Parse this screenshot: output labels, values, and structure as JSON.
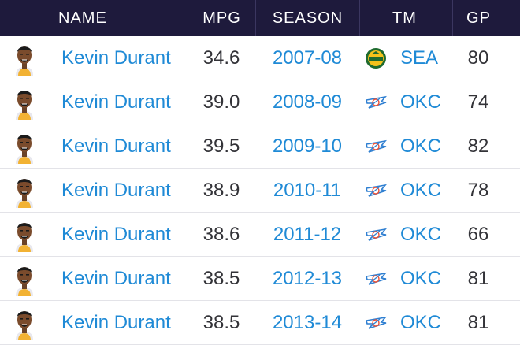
{
  "columns": {
    "name": "NAME",
    "mpg": "MPG",
    "season": "SEASON",
    "tm": "TM",
    "gp": "GP"
  },
  "colors": {
    "header_bg": "#1e1a3c",
    "link": "#1f8ad6",
    "text": "#333338"
  },
  "rows": [
    {
      "name": "Kevin Durant",
      "mpg": "34.6",
      "season": "2007-08",
      "team_logo": "supersonics-logo-icon",
      "tm": "SEA",
      "gp": "80"
    },
    {
      "name": "Kevin Durant",
      "mpg": "39.0",
      "season": "2008-09",
      "team_logo": "thunder-logo-icon",
      "tm": "OKC",
      "gp": "74"
    },
    {
      "name": "Kevin Durant",
      "mpg": "39.5",
      "season": "2009-10",
      "team_logo": "thunder-logo-icon",
      "tm": "OKC",
      "gp": "82"
    },
    {
      "name": "Kevin Durant",
      "mpg": "38.9",
      "season": "2010-11",
      "team_logo": "thunder-logo-icon",
      "tm": "OKC",
      "gp": "78"
    },
    {
      "name": "Kevin Durant",
      "mpg": "38.6",
      "season": "2011-12",
      "team_logo": "thunder-logo-icon",
      "tm": "OKC",
      "gp": "66"
    },
    {
      "name": "Kevin Durant",
      "mpg": "38.5",
      "season": "2012-13",
      "team_logo": "thunder-logo-icon",
      "tm": "OKC",
      "gp": "81"
    },
    {
      "name": "Kevin Durant",
      "mpg": "38.5",
      "season": "2013-14",
      "team_logo": "thunder-logo-icon",
      "tm": "OKC",
      "gp": "81"
    }
  ]
}
